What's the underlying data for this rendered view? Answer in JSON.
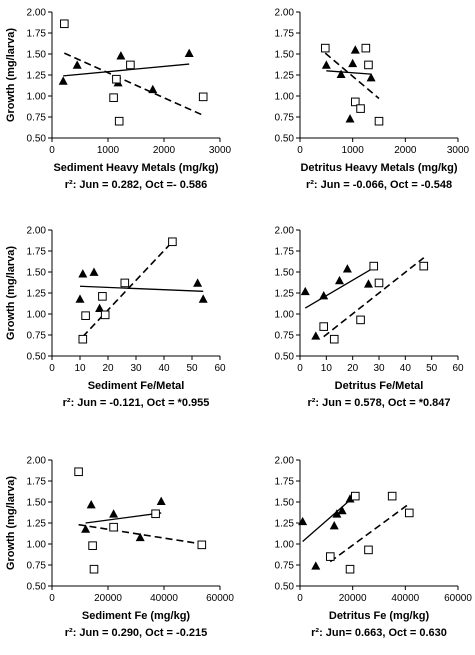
{
  "chart_data": [
    {
      "type": "scatter",
      "xlabel": "Sediment Heavy Metals (mg/kg)",
      "ylabel": "Growth (mg/larva)",
      "caption": "r²: Jun = 0.282, Oct =- 0.586",
      "xlim": [
        0,
        3000
      ],
      "ylim": [
        0.5,
        2.0
      ],
      "xticks": [
        0,
        1000,
        2000,
        3000
      ],
      "yticks": [
        "0.50",
        "0.75",
        "1.00",
        "1.25",
        "1.50",
        "1.75",
        "2.00"
      ],
      "series": [
        {
          "marker": "filled-triangle",
          "line": "solid",
          "points": [
            [
              200,
              1.18
            ],
            [
              450,
              1.37
            ],
            [
              1230,
              1.48
            ],
            [
              1180,
              1.16
            ],
            [
              1800,
              1.08
            ],
            [
              2450,
              1.51
            ]
          ],
          "fit": [
            [
              200,
              1.24
            ],
            [
              2450,
              1.38
            ]
          ]
        },
        {
          "marker": "open-square",
          "line": "dashed",
          "points": [
            [
              220,
              1.86
            ],
            [
              1100,
              0.98
            ],
            [
              1150,
              1.2
            ],
            [
              1200,
              0.7
            ],
            [
              1400,
              1.37
            ],
            [
              2700,
              0.99
            ]
          ],
          "fit": [
            [
              220,
              1.51
            ],
            [
              2700,
              0.77
            ]
          ]
        }
      ]
    },
    {
      "type": "scatter",
      "xlabel": "Detritus Heavy Metals (mg/kg)",
      "ylabel": "",
      "caption": "r²: Jun = -0.066, Oct = -0.548",
      "xlim": [
        0,
        3000
      ],
      "ylim": [
        0.5,
        2.0
      ],
      "xticks": [
        0,
        1000,
        2000,
        3000
      ],
      "yticks": [
        "0.50",
        "0.75",
        "1.00",
        "1.25",
        "1.50",
        "1.75",
        "2.00"
      ],
      "series": [
        {
          "marker": "filled-triangle",
          "line": "solid",
          "points": [
            [
              500,
              1.37
            ],
            [
              780,
              1.26
            ],
            [
              950,
              0.73
            ],
            [
              1000,
              1.39
            ],
            [
              1050,
              1.55
            ],
            [
              1350,
              1.22
            ]
          ],
          "fit": [
            [
              500,
              1.3
            ],
            [
              1350,
              1.26
            ]
          ]
        },
        {
          "marker": "open-square",
          "line": "dashed",
          "points": [
            [
              480,
              1.57
            ],
            [
              1250,
              1.57
            ],
            [
              1300,
              1.37
            ],
            [
              1050,
              0.93
            ],
            [
              1150,
              0.85
            ],
            [
              1500,
              0.7
            ]
          ],
          "fit": [
            [
              480,
              1.51
            ],
            [
              1500,
              0.97
            ]
          ]
        }
      ]
    },
    {
      "type": "scatter",
      "xlabel": "Sediment Fe/Metal",
      "ylabel": "Growth (mg/larva)",
      "caption": "r²: Jun = -0.121, Oct = *0.955",
      "xlim": [
        0,
        60
      ],
      "ylim": [
        0.5,
        2.0
      ],
      "xticks": [
        0,
        10,
        20,
        30,
        40,
        50,
        60
      ],
      "yticks": [
        "0.50",
        "0.75",
        "1.00",
        "1.25",
        "1.50",
        "1.75",
        "2.00"
      ],
      "series": [
        {
          "marker": "filled-triangle",
          "line": "solid",
          "points": [
            [
              10,
              1.18
            ],
            [
              11,
              1.48
            ],
            [
              15,
              1.5
            ],
            [
              17,
              1.07
            ],
            [
              52,
              1.37
            ],
            [
              54,
              1.18
            ]
          ],
          "fit": [
            [
              10,
              1.33
            ],
            [
              54,
              1.27
            ]
          ]
        },
        {
          "marker": "open-square",
          "line": "dashed",
          "points": [
            [
              11,
              0.7
            ],
            [
              12,
              0.98
            ],
            [
              18,
              1.21
            ],
            [
              19,
              0.99
            ],
            [
              26,
              1.37
            ],
            [
              43,
              1.86
            ]
          ],
          "fit": [
            [
              11,
              0.73
            ],
            [
              43,
              1.86
            ]
          ]
        }
      ]
    },
    {
      "type": "scatter",
      "xlabel": "Detritus Fe/Metal",
      "ylabel": "",
      "caption": "r²: Jun = 0.578, Oct = *0.847",
      "xlim": [
        0,
        60
      ],
      "ylim": [
        0.5,
        2.0
      ],
      "xticks": [
        0,
        10,
        20,
        30,
        40,
        50,
        60
      ],
      "yticks": [
        "0.50",
        "0.75",
        "1.00",
        "1.25",
        "1.50",
        "1.75",
        "2.00"
      ],
      "series": [
        {
          "marker": "filled-triangle",
          "line": "solid",
          "points": [
            [
              2,
              1.27
            ],
            [
              6,
              0.74
            ],
            [
              9,
              1.22
            ],
            [
              15,
              1.4
            ],
            [
              18,
              1.54
            ],
            [
              26,
              1.36
            ]
          ],
          "fit": [
            [
              2,
              1.07
            ],
            [
              28,
              1.55
            ]
          ]
        },
        {
          "marker": "open-square",
          "line": "dashed",
          "points": [
            [
              9,
              0.85
            ],
            [
              13,
              0.7
            ],
            [
              23,
              0.93
            ],
            [
              28,
              1.57
            ],
            [
              30,
              1.37
            ],
            [
              47,
              1.57
            ]
          ],
          "fit": [
            [
              9,
              0.73
            ],
            [
              47,
              1.67
            ]
          ]
        }
      ]
    },
    {
      "type": "scatter",
      "xlabel": "Sediment Fe (mg/kg)",
      "ylabel": "Growth (mg/larva)",
      "caption": "r²: Jun = 0.290, Oct = -0.215",
      "xlim": [
        0,
        60000
      ],
      "ylim": [
        0.5,
        2.0
      ],
      "xticks": [
        0,
        20000,
        40000,
        60000
      ],
      "yticks": [
        "0.50",
        "0.75",
        "1.00",
        "1.25",
        "1.50",
        "1.75",
        "2.00"
      ],
      "series": [
        {
          "marker": "filled-triangle",
          "line": "solid",
          "points": [
            [
              12000,
              1.18
            ],
            [
              14000,
              1.47
            ],
            [
              22000,
              1.36
            ],
            [
              31500,
              1.08
            ],
            [
              39000,
              1.51
            ]
          ],
          "fit": [
            [
              12000,
              1.25
            ],
            [
              39000,
              1.37
            ]
          ]
        },
        {
          "marker": "open-square",
          "line": "dashed",
          "points": [
            [
              9500,
              1.86
            ],
            [
              14500,
              0.98
            ],
            [
              15000,
              0.7
            ],
            [
              22000,
              1.2
            ],
            [
              37000,
              1.36
            ],
            [
              53500,
              0.99
            ]
          ],
          "fit": [
            [
              9500,
              1.23
            ],
            [
              53500,
              1.0
            ]
          ]
        }
      ]
    },
    {
      "type": "scatter",
      "xlabel": "Detritus Fe (mg/kg)",
      "ylabel": "",
      "caption": "r²: Jun= 0.663, Oct = 0.630",
      "xlim": [
        0,
        60000
      ],
      "ylim": [
        0.5,
        2.0
      ],
      "xticks": [
        0,
        20000,
        40000,
        60000
      ],
      "yticks": [
        "0.50",
        "0.75",
        "1.00",
        "1.25",
        "1.50",
        "1.75",
        "2.00"
      ],
      "series": [
        {
          "marker": "filled-triangle",
          "line": "solid",
          "points": [
            [
              1000,
              1.27
            ],
            [
              6000,
              0.74
            ],
            [
              13000,
              1.22
            ],
            [
              14000,
              1.36
            ],
            [
              16000,
              1.4
            ],
            [
              19000,
              1.54
            ]
          ],
          "fit": [
            [
              1000,
              1.03
            ],
            [
              20000,
              1.55
            ]
          ]
        },
        {
          "marker": "open-square",
          "line": "dashed",
          "points": [
            [
              11500,
              0.85
            ],
            [
              19000,
              0.7
            ],
            [
              21000,
              1.57
            ],
            [
              26000,
              0.93
            ],
            [
              35000,
              1.57
            ],
            [
              41500,
              1.37
            ]
          ],
          "fit": [
            [
              11500,
              0.79
            ],
            [
              41500,
              1.48
            ]
          ]
        }
      ]
    }
  ]
}
